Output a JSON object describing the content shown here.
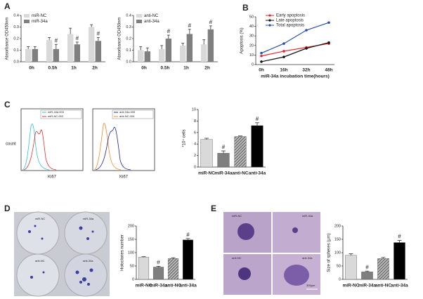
{
  "panels": [
    "A",
    "B",
    "C",
    "D",
    "E"
  ],
  "chart_data": [
    {
      "type": "grouped-bar",
      "ylabel": "Absorbance OD450nm",
      "categories": [
        "0h",
        "0.5h",
        "1h",
        "2h"
      ],
      "series": [
        {
          "name": "miR-NC",
          "color": "#d9d9d9",
          "values": [
            0.11,
            0.19,
            0.24,
            0.3
          ],
          "errors": [
            0.02,
            0.02,
            0.05,
            0.02
          ],
          "annotations": [
            null,
            null,
            null,
            null
          ]
        },
        {
          "name": "miR-34a",
          "color": "#7f7f7f",
          "values": [
            0.11,
            0.11,
            0.15,
            0.18
          ],
          "errors": [
            0.02,
            0.04,
            0.02,
            0.03
          ],
          "annotations": [
            null,
            "#",
            "#",
            "#"
          ]
        }
      ],
      "ylim": [
        0,
        0.4
      ],
      "yticks": [
        {
          "value": 0,
          "label": "0.0"
        },
        0.1,
        0.2,
        0.3,
        0.4
      ]
    },
    {
      "type": "grouped-bar",
      "ylabel": "Absorbance OD450nm",
      "categories": [
        "0h",
        "0.5h",
        "1h",
        "2h"
      ],
      "series": [
        {
          "name": "anti-NC",
          "color": "#d9d9d9",
          "values": [
            0.1,
            0.11,
            0.14,
            0.15
          ],
          "errors": [
            0.03,
            0.03,
            0.02,
            0.04
          ],
          "annotations": [
            null,
            null,
            null,
            null
          ]
        },
        {
          "name": "anti-34a",
          "color": "#7f7f7f",
          "values": [
            0.09,
            0.2,
            0.24,
            0.28
          ],
          "errors": [
            0.03,
            0.03,
            0.04,
            0.03
          ],
          "annotations": [
            null,
            "#",
            "#",
            "#"
          ]
        }
      ],
      "ylim": [
        0,
        0.4
      ],
      "yticks": [
        {
          "value": 0,
          "label": "0.0"
        },
        0.1,
        0.2,
        0.3,
        0.4
      ]
    },
    {
      "type": "line",
      "ylabel": "Apoptosis (%)",
      "xlabel": "miR-34a incubation time(hours)",
      "categories": [
        "0h",
        "16h",
        "32h",
        "48h"
      ],
      "series": [
        {
          "name": "Early apoptosis",
          "color": "#e8262c",
          "values": [
            9,
            14,
            18,
            22
          ]
        },
        {
          "name": "Late apoptosis",
          "color": "#111111",
          "values": [
            3,
            8,
            17,
            23
          ]
        },
        {
          "name": "Total apoptosis",
          "color": "#2b4fa8",
          "values": [
            12,
            22,
            36,
            44
          ]
        }
      ],
      "ylim": [
        0,
        50
      ],
      "yticks": [
        0,
        10,
        20,
        30,
        40,
        50
      ]
    },
    {
      "type": "bar",
      "ylabel": "*10⁴ cells",
      "categories": [
        "miR-NC",
        "miR-34a",
        "anti-NC",
        "anti-34a"
      ],
      "values": [
        4.8,
        2.4,
        5.3,
        7.2
      ],
      "errors": [
        0.2,
        0.4,
        0.1,
        0.5
      ],
      "annotations": [
        null,
        "#",
        null,
        "#"
      ],
      "colors": [
        "#d9d9d9",
        "#7f7f7f",
        "#7f7f7f",
        "#000000"
      ],
      "hatched": [
        false,
        false,
        true,
        false
      ],
      "ylim": [
        0,
        10
      ],
      "yticks": [
        0,
        2,
        4,
        6,
        8,
        10
      ]
    },
    {
      "type": "bar",
      "ylabel": "Holoclones number",
      "categories": [
        "miR-NC",
        "miR-34a",
        "anti-NC",
        "anti-34a"
      ],
      "values": [
        83,
        46,
        78,
        148
      ],
      "errors": [
        2,
        3,
        3,
        5
      ],
      "annotations": [
        null,
        "#",
        null,
        "#"
      ],
      "colors": [
        "#d9d9d9",
        "#7f7f7f",
        "#7f7f7f",
        "#000000"
      ],
      "hatched": [
        false,
        false,
        true,
        false
      ],
      "ylim": [
        0,
        200
      ],
      "yticks": [
        0,
        50,
        100,
        150,
        200
      ]
    },
    {
      "type": "bar",
      "ylabel": "Size of spheres (μm)",
      "categories": [
        "miR-NC",
        "miR-34a",
        "anti-NC",
        "anti-34a"
      ],
      "values": [
        90,
        28,
        78,
        138
      ],
      "errors": [
        6,
        3,
        4,
        8
      ],
      "annotations": [
        null,
        "#",
        null,
        "#"
      ],
      "colors": [
        "#d9d9d9",
        "#7f7f7f",
        "#7f7f7f",
        "#000000"
      ],
      "hatched": [
        false,
        false,
        true,
        false
      ],
      "ylim": [
        0,
        200
      ],
      "yticks": [
        0,
        50,
        100,
        150,
        200
      ]
    }
  ],
  "flow": {
    "ylabel": "count",
    "xlabel": "Ki67",
    "legends": [
      [
        "miR-34a.003",
        "miR-NC.002"
      ],
      [
        "anti-34a.005",
        "anti-NC.004"
      ]
    ]
  },
  "images": {
    "dishes": [
      "miR-NC",
      "miR-34a",
      "anti-NC",
      "anti-34a"
    ],
    "spheres": [
      "miR-NC",
      "miR-34a",
      "anti-NC",
      "anti-34a"
    ],
    "scale": "300μm"
  }
}
